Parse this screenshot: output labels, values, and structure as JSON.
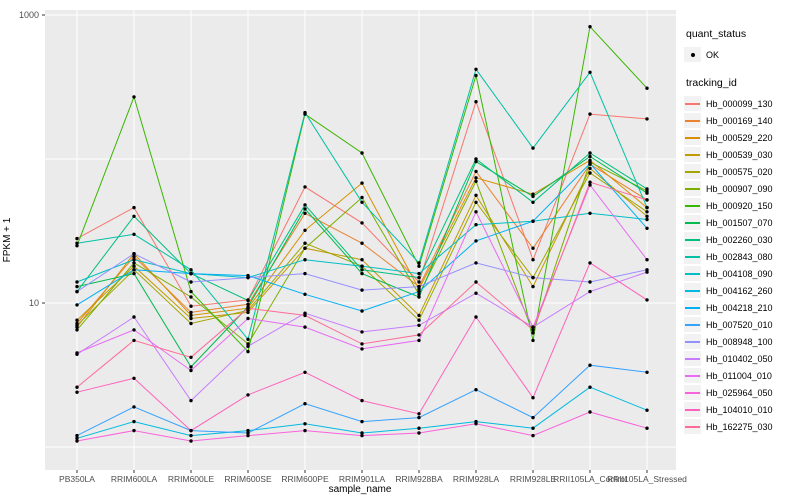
{
  "colors": {
    "panel_bg": "#EBEBEB",
    "grid": "#FFFFFF",
    "tick_text": "#4D4D4D",
    "axis_title_text": "#000000",
    "point": "#000000",
    "legend_key_bg": "#F2F2F2",
    "background": "#FFFFFF"
  },
  "chart_data": {
    "type": "line",
    "xlabel": "sample_name",
    "ylabel": "FPKM + 1",
    "y_scale": "log10",
    "ylim": [
      0.7,
      1080
    ],
    "grid": true,
    "legend_position": "right",
    "y_tick_labels": [
      "1000",
      "10"
    ],
    "y_tick_values": [
      1000,
      10
    ],
    "y_gridline_values": [
      1,
      10,
      100,
      1000
    ],
    "categories": [
      "PB350LA",
      "RRIM600LA",
      "RRIM600LE",
      "RRIM600SE",
      "RRIM600PE",
      "RRIM901LA",
      "RRIM928BA",
      "RRIM928LA",
      "RRIM928LE",
      "RRII105LA_Control",
      "RRII105LA_Stressed"
    ],
    "point_marker": "black dot on every observation",
    "series": [
      {
        "name": "Hb_000099_130",
        "color": "#F8766D",
        "values": [
          28,
          46,
          9.5,
          10.5,
          64,
          36,
          14,
          250,
          20,
          205,
          190
        ]
      },
      {
        "name": "Hb_000169_140",
        "color": "#EA8331",
        "values": [
          7.2,
          21,
          8.6,
          9.8,
          42,
          26,
          13,
          82,
          24,
          92,
          52
        ]
      },
      {
        "name": "Hb_000529_220",
        "color": "#D89000",
        "values": [
          6.8,
          22,
          8.2,
          9.2,
          32,
          68,
          12.5,
          74,
          57,
          98,
          46
        ]
      },
      {
        "name": "Hb_000539_030",
        "color": "#C09B00",
        "values": [
          7.6,
          18,
          7.8,
          8.6,
          24,
          20,
          8.2,
          56,
          13,
          86,
          40
        ]
      },
      {
        "name": "Hb_000575_020",
        "color": "#A3A500",
        "values": [
          7.0,
          17,
          7.2,
          8.9,
          26,
          18,
          7.6,
          50,
          15,
          80,
          43
        ]
      },
      {
        "name": "Hb_000907_090",
        "color": "#7CAE00",
        "values": [
          6.5,
          19,
          11,
          5.2,
          24,
          54,
          11.5,
          70,
          6.2,
          95,
          60
        ]
      },
      {
        "name": "Hb_000920_150",
        "color": "#39B600",
        "values": [
          25,
          270,
          12,
          4.6,
          205,
          110,
          18,
          380,
          5.5,
          830,
          310
        ]
      },
      {
        "name": "Hb_001507_070",
        "color": "#00BB4E",
        "values": [
          13,
          16,
          3.6,
          9.4,
          45,
          16,
          11,
          96,
          55,
          104,
          58
        ]
      },
      {
        "name": "Hb_002260_030",
        "color": "#00BF7D",
        "values": [
          12,
          40,
          16,
          10.4,
          48,
          17,
          15,
          100,
          50,
          110,
          62
        ]
      },
      {
        "name": "Hb_002843_080",
        "color": "#00C1A3",
        "values": [
          26,
          30,
          17,
          5.6,
          210,
          50,
          19,
          420,
          119,
          400,
          46
        ]
      },
      {
        "name": "Hb_004108_090",
        "color": "#00BFC4",
        "values": [
          14,
          20,
          16,
          15,
          20,
          18,
          16,
          35,
          37,
          42,
          38
        ]
      },
      {
        "name": "Hb_004162_260",
        "color": "#00BAE0",
        "values": [
          1.15,
          1.5,
          1.2,
          1.3,
          1.45,
          1.25,
          1.35,
          1.5,
          1.35,
          2.6,
          1.8
        ]
      },
      {
        "name": "Hb_004218_210",
        "color": "#00B0F6",
        "values": [
          9.7,
          17,
          16,
          15.5,
          11.5,
          8.8,
          12,
          27,
          37,
          93,
          33
        ]
      },
      {
        "name": "Hb_007520_010",
        "color": "#35A2FF",
        "values": [
          1.2,
          1.9,
          1.3,
          1.25,
          2.0,
          1.5,
          1.6,
          2.5,
          1.6,
          3.7,
          3.3
        ]
      },
      {
        "name": "Hb_008948_100",
        "color": "#9590FF",
        "values": [
          12,
          22,
          14,
          15,
          16,
          12.3,
          13,
          19,
          15,
          14,
          17
        ]
      },
      {
        "name": "Hb_010402_050",
        "color": "#C77CFF",
        "values": [
          4.4,
          8.0,
          2.1,
          5.0,
          8.5,
          6.3,
          7.0,
          11.7,
          6.8,
          12,
          16.4
        ]
      },
      {
        "name": "Hb_011004_010",
        "color": "#E76BF3",
        "values": [
          4.5,
          6.5,
          3.4,
          7.8,
          6.8,
          4.8,
          5.5,
          43,
          6.8,
          66,
          20
        ]
      },
      {
        "name": "Hb_025964_050",
        "color": "#FA62DB",
        "values": [
          1.1,
          1.3,
          1.1,
          1.2,
          1.3,
          1.2,
          1.25,
          1.45,
          1.2,
          1.75,
          1.35
        ]
      },
      {
        "name": "Hb_104010_010",
        "color": "#FF62BC",
        "values": [
          2.4,
          3.0,
          1.3,
          2.3,
          3.3,
          2.1,
          1.7,
          8.0,
          2.2,
          19,
          10.5
        ]
      },
      {
        "name": "Hb_162275_030",
        "color": "#FF6A98",
        "values": [
          2.6,
          5.5,
          4.2,
          9.2,
          8.2,
          5.2,
          6.0,
          14,
          6.5,
          69,
          52
        ]
      }
    ],
    "legends": {
      "quant_status": {
        "title": "quant_status",
        "items": [
          {
            "label": "OK",
            "symbol": "point",
            "color": "#000000"
          }
        ]
      },
      "tracking_id": {
        "title": "tracking_id",
        "note": "items are the 20 series names/colors above"
      }
    }
  }
}
